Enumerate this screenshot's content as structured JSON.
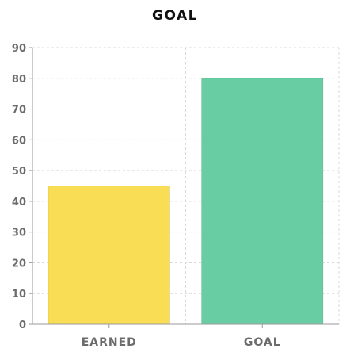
{
  "chart_data": {
    "type": "bar",
    "title": "GOAL",
    "categories": [
      "EARNED",
      "GOAL"
    ],
    "values": [
      45,
      80
    ],
    "bar_colors": [
      "#f9de55",
      "#68cda3"
    ],
    "ylim": [
      0,
      90
    ],
    "yticks": [
      0,
      10,
      20,
      30,
      40,
      50,
      60,
      70,
      80,
      90
    ],
    "grid": true,
    "legend": "none"
  }
}
